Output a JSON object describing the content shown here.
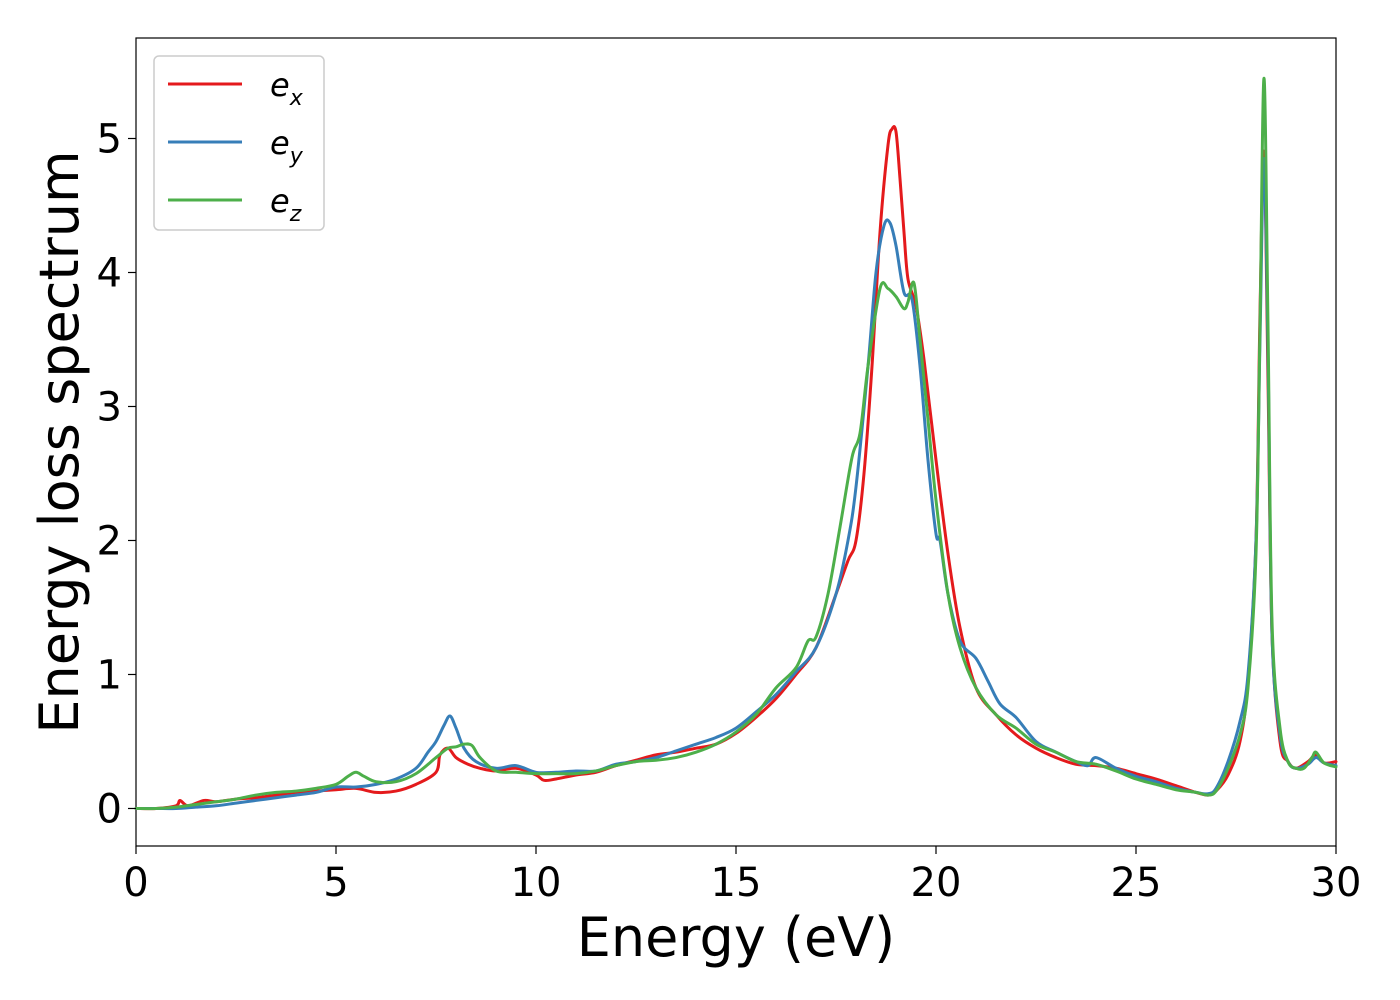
{
  "chart_data": {
    "type": "line",
    "title": "",
    "xlabel": "Energy (eV)",
    "ylabel": "Energy loss spectrum",
    "xlim": [
      0,
      30
    ],
    "ylim": [
      -0.28,
      5.75
    ],
    "xticks": [
      0,
      5,
      10,
      15,
      20,
      25,
      30
    ],
    "yticks": [
      0,
      1,
      2,
      3,
      4,
      5
    ],
    "grid": false,
    "legend_position": "top-left",
    "series": [
      {
        "name": "e_x",
        "legend_base": "e",
        "legend_sub": "x",
        "color": "#e41a1c",
        "x": [
          0,
          0.5,
          1.0,
          1.1,
          1.3,
          1.7,
          2.0,
          2.5,
          3.0,
          3.5,
          4.0,
          4.5,
          5.0,
          5.5,
          6.0,
          6.5,
          7.0,
          7.5,
          7.6,
          7.8,
          8.0,
          8.3,
          8.6,
          9.0,
          9.5,
          10.0,
          10.2,
          10.5,
          11.0,
          11.5,
          12.0,
          12.5,
          13.0,
          13.5,
          14.0,
          14.5,
          15.0,
          15.5,
          16.0,
          16.5,
          17.0,
          17.5,
          17.8,
          18.0,
          18.2,
          18.4,
          18.6,
          18.8,
          18.9,
          19.0,
          19.1,
          19.2,
          19.3,
          19.5,
          19.7,
          20.0,
          20.3,
          20.6,
          21.0,
          21.5,
          22.0,
          22.5,
          23.0,
          23.5,
          24.0,
          24.5,
          25.0,
          25.5,
          26.0,
          26.5,
          26.8,
          27.0,
          27.3,
          27.6,
          27.8,
          28.0,
          28.1,
          28.2,
          28.3,
          28.4,
          28.6,
          28.8,
          29.0,
          29.3,
          29.5,
          29.7,
          30.0
        ],
        "y": [
          0,
          0,
          0.02,
          0.06,
          0.02,
          0.06,
          0.05,
          0.07,
          0.08,
          0.1,
          0.12,
          0.13,
          0.14,
          0.15,
          0.12,
          0.13,
          0.18,
          0.27,
          0.4,
          0.45,
          0.38,
          0.33,
          0.3,
          0.28,
          0.3,
          0.25,
          0.21,
          0.22,
          0.25,
          0.27,
          0.32,
          0.36,
          0.4,
          0.42,
          0.45,
          0.48,
          0.56,
          0.68,
          0.82,
          1.0,
          1.2,
          1.6,
          1.85,
          2.0,
          2.5,
          3.3,
          4.3,
          4.95,
          5.07,
          5.05,
          4.7,
          4.3,
          3.95,
          3.75,
          3.35,
          2.6,
          1.9,
          1.35,
          0.9,
          0.7,
          0.55,
          0.45,
          0.38,
          0.33,
          0.32,
          0.3,
          0.26,
          0.22,
          0.17,
          0.12,
          0.1,
          0.13,
          0.25,
          0.5,
          0.95,
          2.0,
          3.7,
          4.9,
          3.2,
          1.3,
          0.5,
          0.35,
          0.3,
          0.35,
          0.4,
          0.34,
          0.35
        ]
      },
      {
        "name": "e_y",
        "legend_base": "e",
        "legend_sub": "y",
        "color": "#377eb8",
        "x": [
          0,
          0.5,
          1.0,
          1.5,
          2.0,
          2.5,
          3.0,
          3.5,
          4.0,
          4.5,
          5.0,
          5.5,
          6.0,
          6.5,
          7.0,
          7.3,
          7.5,
          7.7,
          7.85,
          8.0,
          8.2,
          8.5,
          9.0,
          9.5,
          10.0,
          10.5,
          11.0,
          11.5,
          12.0,
          12.5,
          13.0,
          13.5,
          14.0,
          14.5,
          15.0,
          15.5,
          16.0,
          16.5,
          17.0,
          17.5,
          17.8,
          18.0,
          18.3,
          18.5,
          18.7,
          18.85,
          19.0,
          19.2,
          19.4,
          19.6,
          19.8,
          20.0,
          20.1,
          20.3,
          20.6,
          21.0,
          21.3,
          21.6,
          22.0,
          22.5,
          23.0,
          23.5,
          23.8,
          24.0,
          24.5,
          25.0,
          25.5,
          26.0,
          26.5,
          26.8,
          27.0,
          27.3,
          27.6,
          27.8,
          28.0,
          28.1,
          28.2,
          28.3,
          28.4,
          28.6,
          28.8,
          29.0,
          29.3,
          29.5,
          29.7,
          30.0
        ],
        "y": [
          0,
          0,
          0,
          0.01,
          0.02,
          0.04,
          0.06,
          0.08,
          0.1,
          0.12,
          0.16,
          0.16,
          0.18,
          0.22,
          0.3,
          0.42,
          0.5,
          0.62,
          0.69,
          0.6,
          0.45,
          0.35,
          0.3,
          0.32,
          0.27,
          0.27,
          0.28,
          0.28,
          0.33,
          0.35,
          0.38,
          0.43,
          0.48,
          0.53,
          0.6,
          0.72,
          0.85,
          1.02,
          1.2,
          1.6,
          2.0,
          2.4,
          3.3,
          4.0,
          4.35,
          4.37,
          4.2,
          3.85,
          3.8,
          3.3,
          2.6,
          2.05,
          2.0,
          1.6,
          1.25,
          1.12,
          0.95,
          0.78,
          0.68,
          0.5,
          0.42,
          0.35,
          0.32,
          0.38,
          0.3,
          0.24,
          0.2,
          0.15,
          0.12,
          0.11,
          0.15,
          0.35,
          0.65,
          1.0,
          2.0,
          3.5,
          4.85,
          3.4,
          1.3,
          0.55,
          0.35,
          0.3,
          0.33,
          0.38,
          0.34,
          0.32
        ]
      },
      {
        "name": "e_z",
        "legend_base": "e",
        "legend_sub": "z",
        "color": "#4daf4a",
        "x": [
          0,
          0.5,
          1.0,
          1.5,
          2.0,
          2.5,
          3.0,
          3.5,
          4.0,
          4.5,
          5.0,
          5.3,
          5.5,
          5.7,
          6.0,
          6.5,
          7.0,
          7.5,
          7.8,
          8.0,
          8.2,
          8.4,
          8.6,
          9.0,
          9.5,
          10.0,
          10.5,
          11.0,
          11.5,
          12.0,
          12.5,
          13.0,
          13.5,
          14.0,
          14.5,
          15.0,
          15.5,
          16.0,
          16.5,
          16.8,
          17.0,
          17.3,
          17.6,
          17.9,
          18.1,
          18.3,
          18.6,
          18.8,
          19.0,
          19.2,
          19.3,
          19.45,
          19.6,
          19.8,
          20.0,
          20.3,
          20.6,
          21.0,
          21.5,
          22.0,
          22.5,
          23.0,
          23.5,
          24.0,
          24.5,
          25.0,
          25.5,
          26.0,
          26.5,
          26.8,
          27.0,
          27.3,
          27.6,
          27.8,
          28.0,
          28.1,
          28.2,
          28.3,
          28.4,
          28.6,
          28.8,
          29.0,
          29.2,
          29.4,
          29.5,
          29.7,
          30.0
        ],
        "y": [
          0,
          0,
          0.01,
          0.03,
          0.05,
          0.07,
          0.1,
          0.12,
          0.13,
          0.15,
          0.18,
          0.24,
          0.27,
          0.24,
          0.2,
          0.2,
          0.26,
          0.38,
          0.45,
          0.46,
          0.48,
          0.47,
          0.38,
          0.28,
          0.27,
          0.26,
          0.26,
          0.26,
          0.28,
          0.32,
          0.35,
          0.36,
          0.38,
          0.42,
          0.48,
          0.57,
          0.7,
          0.9,
          1.05,
          1.25,
          1.28,
          1.6,
          2.1,
          2.62,
          2.8,
          3.3,
          3.88,
          3.88,
          3.82,
          3.73,
          3.78,
          3.92,
          3.5,
          2.9,
          2.3,
          1.6,
          1.2,
          0.9,
          0.7,
          0.6,
          0.48,
          0.42,
          0.35,
          0.33,
          0.28,
          0.22,
          0.18,
          0.14,
          0.12,
          0.1,
          0.13,
          0.3,
          0.55,
          0.9,
          1.9,
          3.6,
          5.45,
          3.6,
          1.4,
          0.6,
          0.35,
          0.3,
          0.3,
          0.38,
          0.42,
          0.34,
          0.31
        ]
      }
    ]
  }
}
